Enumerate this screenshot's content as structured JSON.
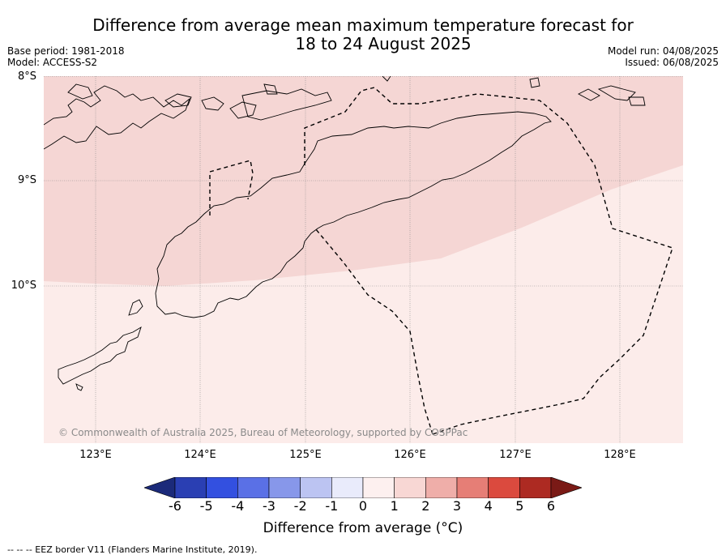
{
  "title": {
    "line1": "Difference from average mean maximum temperature forecast for",
    "line2": "18 to 24 August 2025"
  },
  "meta": {
    "base_period": "Base period: 1981-2018",
    "model": "Model: ACCESS-S2",
    "model_run": "Model run: 04/08/2025",
    "issued": "Issued: 06/08/2025"
  },
  "map": {
    "lat_labels": [
      "8°S",
      "9°S",
      "10°S"
    ],
    "lon_labels": [
      "123°E",
      "124°E",
      "125°E",
      "126°E",
      "127°E",
      "128°E"
    ],
    "copyright": "© Commonwealth of Australia 2025, Bureau of Meteorology, supported by COSPPac",
    "colors": {
      "band_1_to_2": "#f5d6d4",
      "band_0_to_1": "#fcecea",
      "land_outline": "#000000",
      "grid": "#888888"
    }
  },
  "colorbar": {
    "labels": [
      "-6",
      "-5",
      "-4",
      "-3",
      "-2",
      "-1",
      "0",
      "1",
      "2",
      "3",
      "4",
      "5",
      "6"
    ],
    "colors": [
      "#1b2a7a",
      "#2a3fb3",
      "#3350e0",
      "#5a70e6",
      "#8797ea",
      "#bcc4f2",
      "#e9ebfb",
      "#fdf0ef",
      "#f8d7d4",
      "#efaea9",
      "#e67e76",
      "#db4a3e",
      "#ad2a22",
      "#7a1a16"
    ],
    "title": "Difference from average (°C)"
  },
  "footer": "--  --  -- EEZ border V11 (Flanders Marine Institute, 2019)."
}
